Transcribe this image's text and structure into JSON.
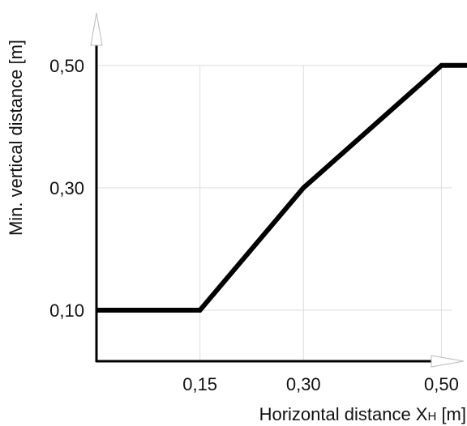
{
  "chart_data": {
    "type": "line",
    "xlabel": "Horizontal distance X",
    "xlabel_subscript": "H",
    "xlabel_unit": " [m]",
    "ylabel": "Min. vertical distance [m]",
    "x_ticks": [
      "0,15",
      "0,30",
      "0,50"
    ],
    "y_ticks": [
      "0,10",
      "0,30",
      "0,50"
    ],
    "x_tick_values": [
      0.15,
      0.3,
      0.5
    ],
    "y_tick_values": [
      0.1,
      0.3,
      0.5
    ],
    "xlim": [
      0,
      0.55
    ],
    "ylim": [
      0.01,
      0.55
    ],
    "grid": true,
    "series": [
      {
        "x": [
          0.0,
          0.15,
          0.3,
          0.5,
          0.55
        ],
        "y": [
          0.1,
          0.1,
          0.3,
          0.5,
          0.5
        ]
      }
    ],
    "colors": {
      "line": "#000000",
      "axis": "#000000",
      "grid": "#dddddd",
      "arrow_fill": "#ffffff",
      "arrow_stroke": "#bbbbbb"
    }
  }
}
